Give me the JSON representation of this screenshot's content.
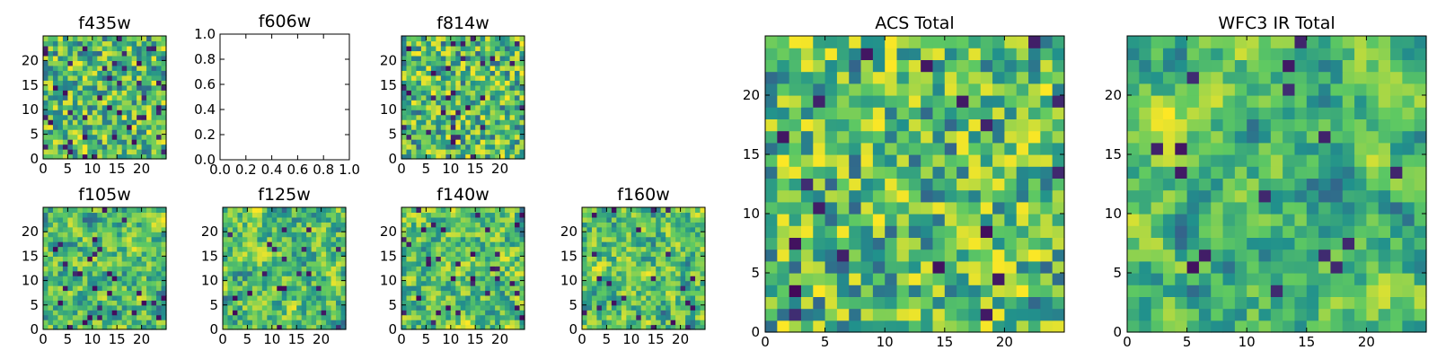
{
  "colormap": [
    "#440154",
    "#3b528b",
    "#21918c",
    "#5ec962",
    "#fde725"
  ],
  "chart_data": [
    {
      "type": "heatmap",
      "title": "f435w",
      "x_ticks": [
        "0",
        "5",
        "10",
        "15",
        "20"
      ],
      "y_ticks": [
        "0",
        "5",
        "10",
        "15",
        "20"
      ],
      "xlim": [
        0,
        25
      ],
      "ylim": [
        0,
        25
      ],
      "grid_size": 25,
      "seed": 11,
      "smooth": 0,
      "dark_fraction": 0.06
    },
    {
      "type": "empty",
      "title": "f606w",
      "x_ticks": [
        "0.0",
        "0.2",
        "0.4",
        "0.6",
        "0.8",
        "1.0"
      ],
      "y_ticks": [
        "0.0",
        "0.2",
        "0.4",
        "0.6",
        "0.8",
        "1.0"
      ],
      "xlim": [
        0,
        1
      ],
      "ylim": [
        0,
        1
      ]
    },
    {
      "type": "heatmap",
      "title": "f814w",
      "x_ticks": [
        "0",
        "5",
        "10",
        "15",
        "20"
      ],
      "y_ticks": [
        "0",
        "5",
        "10",
        "15",
        "20"
      ],
      "xlim": [
        0,
        25
      ],
      "ylim": [
        0,
        25
      ],
      "grid_size": 25,
      "seed": 23,
      "smooth": 0,
      "dark_fraction": 0.05
    },
    {
      "type": "heatmap",
      "title": "f105w",
      "x_ticks": [
        "0",
        "5",
        "10",
        "15",
        "20"
      ],
      "y_ticks": [
        "0",
        "5",
        "10",
        "15",
        "20"
      ],
      "xlim": [
        0,
        25
      ],
      "ylim": [
        0,
        25
      ],
      "grid_size": 25,
      "seed": 37,
      "smooth": 1,
      "dark_fraction": 0.05
    },
    {
      "type": "heatmap",
      "title": "f125w",
      "x_ticks": [
        "0",
        "5",
        "10",
        "15",
        "20"
      ],
      "y_ticks": [
        "0",
        "5",
        "10",
        "15",
        "20"
      ],
      "xlim": [
        0,
        25
      ],
      "ylim": [
        0,
        25
      ],
      "grid_size": 25,
      "seed": 41,
      "smooth": 1,
      "dark_fraction": 0.05
    },
    {
      "type": "heatmap",
      "title": "f140w",
      "x_ticks": [
        "0",
        "5",
        "10",
        "15",
        "20"
      ],
      "y_ticks": [
        "0",
        "5",
        "10",
        "15",
        "20"
      ],
      "xlim": [
        0,
        25
      ],
      "ylim": [
        0,
        25
      ],
      "grid_size": 25,
      "seed": 53,
      "smooth": 1,
      "dark_fraction": 0.05
    },
    {
      "type": "heatmap",
      "title": "f160w",
      "x_ticks": [
        "0",
        "5",
        "10",
        "15",
        "20"
      ],
      "y_ticks": [
        "0",
        "5",
        "10",
        "15",
        "20"
      ],
      "xlim": [
        0,
        25
      ],
      "ylim": [
        0,
        25
      ],
      "grid_size": 25,
      "seed": 67,
      "smooth": 1,
      "dark_fraction": 0.05
    },
    {
      "type": "heatmap",
      "title": "ACS Total",
      "x_ticks": [
        "0",
        "5",
        "10",
        "15",
        "20"
      ],
      "y_ticks": [
        "0",
        "5",
        "10",
        "15",
        "20"
      ],
      "xlim": [
        0,
        25
      ],
      "ylim": [
        0,
        25
      ],
      "grid_size": 25,
      "seed": 79,
      "smooth": 0,
      "dark_fraction": 0.03
    },
    {
      "type": "heatmap",
      "title": "WFC3 IR Total",
      "x_ticks": [
        "0",
        "5",
        "10",
        "15",
        "20"
      ],
      "y_ticks": [
        "0",
        "5",
        "10",
        "15",
        "20"
      ],
      "xlim": [
        0,
        25
      ],
      "ylim": [
        0,
        25
      ],
      "grid_size": 25,
      "seed": 83,
      "smooth": 2,
      "dark_fraction": 0.02
    }
  ]
}
